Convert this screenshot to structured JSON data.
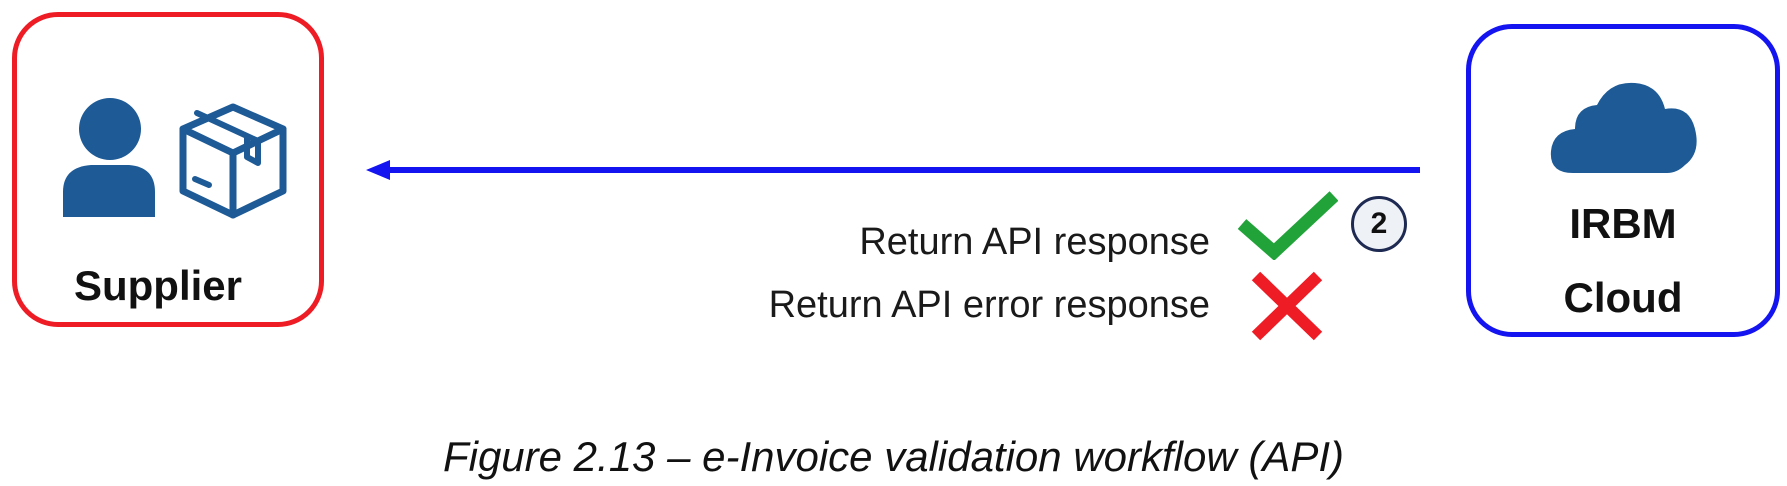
{
  "nodes": {
    "supplier": {
      "label": "Supplier",
      "border_color": "#ee1c24",
      "icons": [
        "person-icon",
        "package-box-icon"
      ]
    },
    "irbm": {
      "label_line1": "IRBM",
      "label_line2": "Cloud",
      "border_color": "#1414f0",
      "icons": [
        "cloud-icon"
      ]
    }
  },
  "flow": {
    "arrow_color": "#1414f0",
    "direction": "irbm-to-supplier",
    "step_number": "2",
    "responses": [
      {
        "text": "Return API response",
        "status_icon": "check-icon",
        "color": "#22a33a"
      },
      {
        "text": "Return API error response",
        "status_icon": "cross-icon",
        "color": "#ee1c24"
      }
    ]
  },
  "icon_color": "#1d5a96",
  "caption": "Figure 2.13 – e-Invoice validation workflow (API)"
}
